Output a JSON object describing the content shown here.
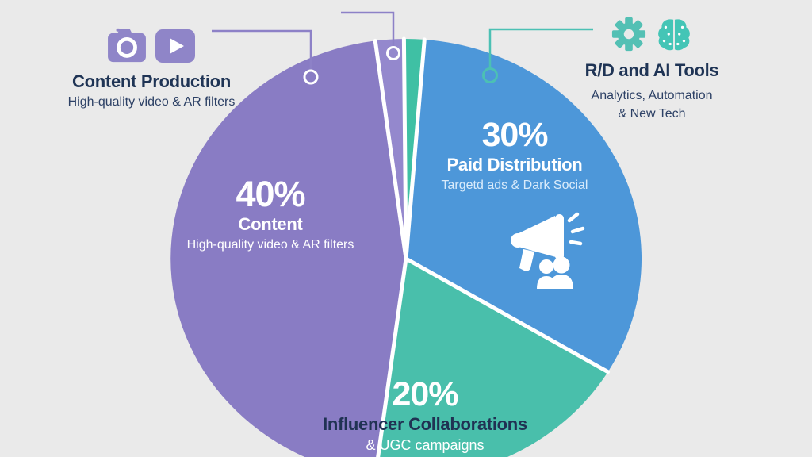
{
  "colors": {
    "background": "#eaeaea",
    "purple": "#897cc4",
    "purple_sliver": "#9488cd",
    "blue": "#4d97d9",
    "teal": "#49bfab",
    "teal_sliver": "#3fc0a4",
    "heading_text": "#1f3455",
    "sub_text": "#2d4166",
    "white": "#ffffff",
    "connector_purple": "#8d81c7",
    "connector_teal": "#4cc0b4",
    "icon_purple": "#8f85c8",
    "icon_teal": "#53c0b4",
    "icon_brain_teal": "#44c5b6"
  },
  "chart_data": {
    "type": "pie",
    "title": "",
    "legend_position": "callouts-top",
    "slices": [
      {
        "id": "content",
        "label": "Content",
        "value": 40,
        "pct_label": "40%",
        "sub": "High-quality video & AR filters",
        "color": "#897cc4",
        "angles_deg": [
          187.5,
          352.5
        ]
      },
      {
        "id": "paid-distribution",
        "label": "Paid Distribution",
        "value": 30,
        "pct_label": "30%",
        "sub": "Targetd ads & Dark Social",
        "color": "#4d97d9",
        "angles_deg": [
          4.5,
          121
        ]
      },
      {
        "id": "influencer-collaborations",
        "label": "Influencer Collaborations",
        "value": 20,
        "pct_label": "20%",
        "sub": "& UGC campaigns",
        "color": "#49bfab",
        "angles_deg": [
          121,
          187.5
        ]
      },
      {
        "id": "content-production-sliver",
        "label": "",
        "value": null,
        "pct_label": "",
        "sub": "",
        "color": "#9488cd",
        "angles_deg": [
          352.5,
          359.5
        ]
      },
      {
        "id": "rd-ai-sliver",
        "label": "",
        "value": null,
        "pct_label": "",
        "sub": "",
        "color": "#3fc0a4",
        "angles_deg": [
          359.5,
          364.5
        ]
      }
    ]
  },
  "callouts": {
    "content_production": {
      "title": "Content Production",
      "subtitle": "High-quality video & AR filters",
      "icons": [
        "camera-icon",
        "play-icon"
      ]
    },
    "rd_ai_tools": {
      "title": "R/D and AI Tools",
      "subtitle_line1": "Analytics, Automation",
      "subtitle_line2": "& New Tech",
      "icons": [
        "gear-icon",
        "brain-icon"
      ]
    }
  },
  "pie_icons": [
    "megaphone-icon",
    "people-group-icon"
  ]
}
